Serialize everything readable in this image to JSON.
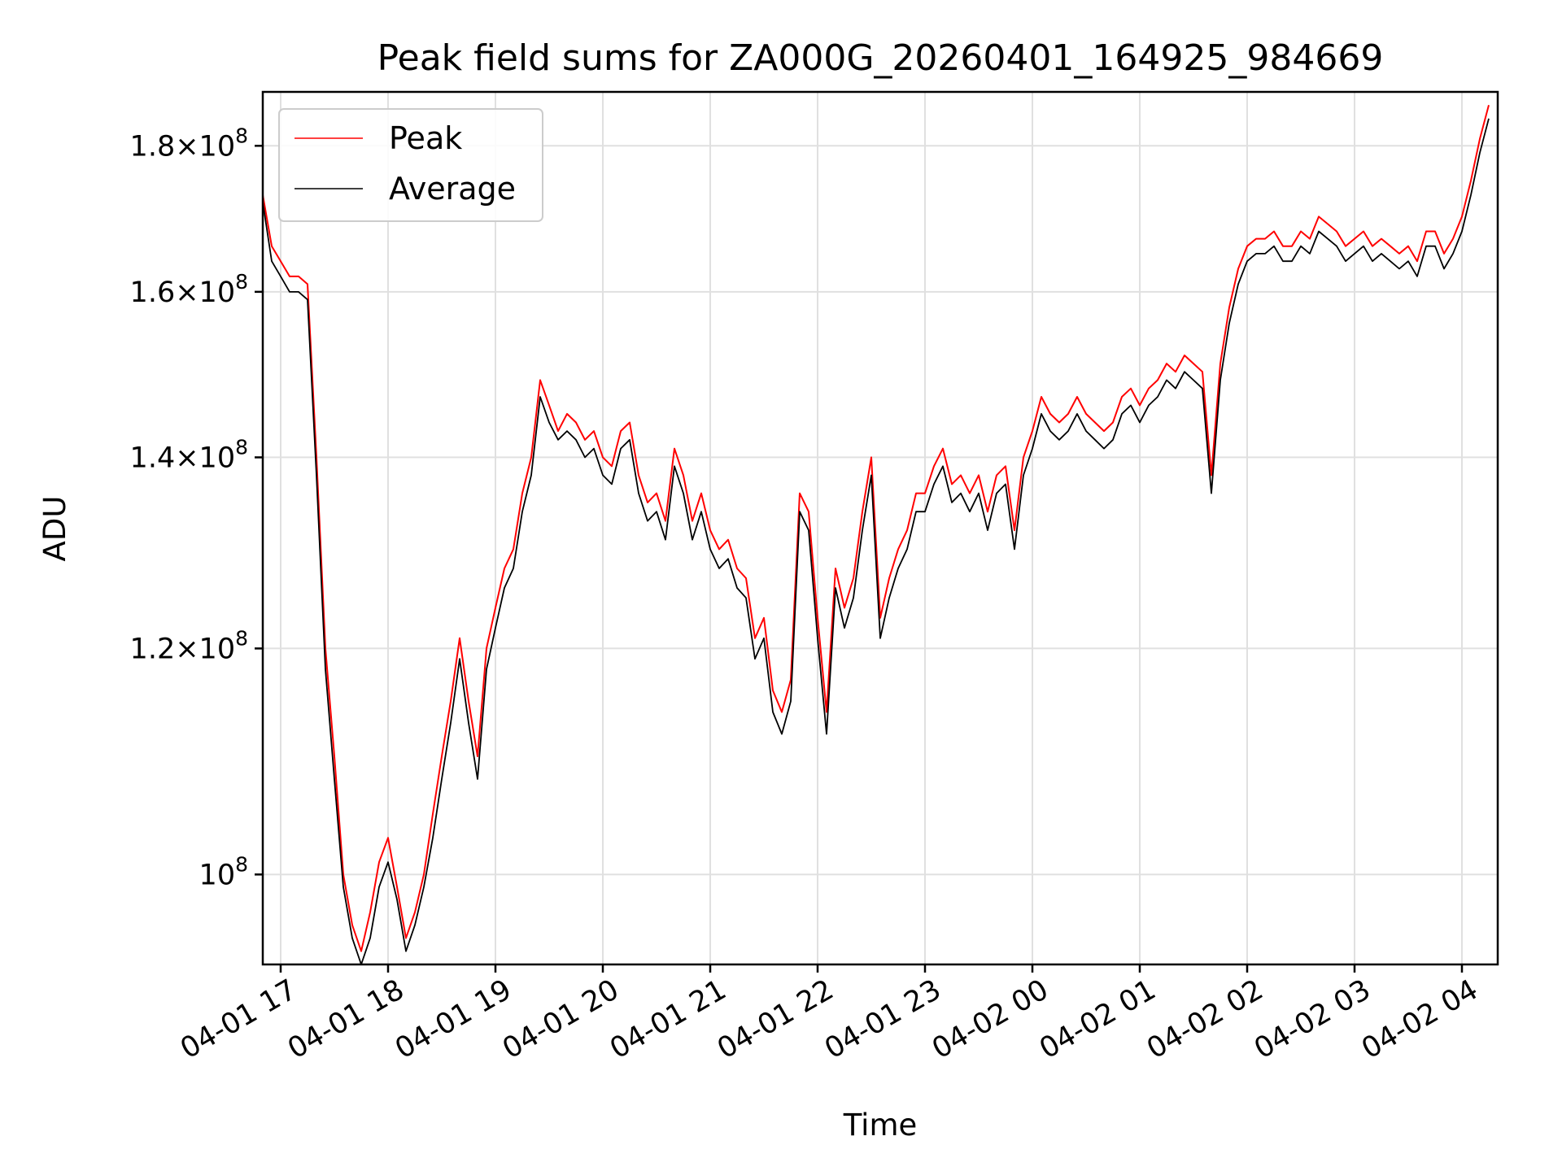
{
  "chart_data": {
    "type": "line",
    "title": "Peak field sums for ZA000G_20260401_164925_984669",
    "xlabel": "Time",
    "ylabel": "ADU",
    "yscale": "log",
    "xlim": [
      "04-01 16:50",
      "04-02 04:20"
    ],
    "ylim": [
      93000000,
      188000000
    ],
    "grid": true,
    "legend": {
      "position": "top-left"
    },
    "x_ticks": [
      "04-01 17",
      "04-01 18",
      "04-01 19",
      "04-01 20",
      "04-01 21",
      "04-01 22",
      "04-01 23",
      "04-02 00",
      "04-02 01",
      "04-02 02",
      "04-02 03",
      "04-02 04"
    ],
    "y_ticks": [
      {
        "value": 100000000,
        "label": "10^8"
      },
      {
        "value": 120000000,
        "label": "1.2×10^8"
      },
      {
        "value": 140000000,
        "label": "1.4×10^8"
      },
      {
        "value": 160000000,
        "label": "1.6×10^8"
      },
      {
        "value": 180000000,
        "label": "1.8×10^8"
      }
    ],
    "x": [
      "04-01 16:50",
      "04-01 16:55",
      "04-01 17:00",
      "04-01 17:05",
      "04-01 17:10",
      "04-01 17:15",
      "04-01 17:20",
      "04-01 17:25",
      "04-01 17:30",
      "04-01 17:35",
      "04-01 17:40",
      "04-01 17:45",
      "04-01 17:50",
      "04-01 17:55",
      "04-01 18:00",
      "04-01 18:05",
      "04-01 18:10",
      "04-01 18:15",
      "04-01 18:20",
      "04-01 18:25",
      "04-01 18:30",
      "04-01 18:35",
      "04-01 18:40",
      "04-01 18:45",
      "04-01 18:50",
      "04-01 18:55",
      "04-01 19:00",
      "04-01 19:05",
      "04-01 19:10",
      "04-01 19:15",
      "04-01 19:20",
      "04-01 19:25",
      "04-01 19:30",
      "04-01 19:35",
      "04-01 19:40",
      "04-01 19:45",
      "04-01 19:50",
      "04-01 19:55",
      "04-01 20:00",
      "04-01 20:05",
      "04-01 20:10",
      "04-01 20:15",
      "04-01 20:20",
      "04-01 20:25",
      "04-01 20:30",
      "04-01 20:35",
      "04-01 20:40",
      "04-01 20:45",
      "04-01 20:50",
      "04-01 20:55",
      "04-01 21:00",
      "04-01 21:05",
      "04-01 21:10",
      "04-01 21:15",
      "04-01 21:20",
      "04-01 21:25",
      "04-01 21:30",
      "04-01 21:35",
      "04-01 21:40",
      "04-01 21:45",
      "04-01 21:50",
      "04-01 21:55",
      "04-01 22:00",
      "04-01 22:05",
      "04-01 22:10",
      "04-01 22:15",
      "04-01 22:20",
      "04-01 22:25",
      "04-01 22:30",
      "04-01 22:35",
      "04-01 22:40",
      "04-01 22:45",
      "04-01 22:50",
      "04-01 22:55",
      "04-01 23:00",
      "04-01 23:05",
      "04-01 23:10",
      "04-01 23:15",
      "04-01 23:20",
      "04-01 23:25",
      "04-01 23:30",
      "04-01 23:35",
      "04-01 23:40",
      "04-01 23:45",
      "04-01 23:50",
      "04-01 23:55",
      "04-02 00:00",
      "04-02 00:05",
      "04-02 00:10",
      "04-02 00:15",
      "04-02 00:20",
      "04-02 00:25",
      "04-02 00:30",
      "04-02 00:35",
      "04-02 00:40",
      "04-02 00:45",
      "04-02 00:50",
      "04-02 00:55",
      "04-02 01:00",
      "04-02 01:05",
      "04-02 01:10",
      "04-02 01:15",
      "04-02 01:20",
      "04-02 01:25",
      "04-02 01:30",
      "04-02 01:35",
      "04-02 01:40",
      "04-02 01:45",
      "04-02 01:50",
      "04-02 01:55",
      "04-02 02:00",
      "04-02 02:05",
      "04-02 02:10",
      "04-02 02:15",
      "04-02 02:20",
      "04-02 02:25",
      "04-02 02:30",
      "04-02 02:35",
      "04-02 02:40",
      "04-02 02:45",
      "04-02 02:50",
      "04-02 02:55",
      "04-02 03:00",
      "04-02 03:05",
      "04-02 03:10",
      "04-02 03:15",
      "04-02 03:20",
      "04-02 03:25",
      "04-02 03:30",
      "04-02 03:35",
      "04-02 03:40",
      "04-02 03:45",
      "04-02 03:50",
      "04-02 03:55",
      "04-02 04:00",
      "04-02 04:05",
      "04-02 04:10",
      "04-02 04:15"
    ],
    "series": [
      {
        "name": "Peak",
        "color": "#ff0000",
        "values": [
          173,
          166,
          164,
          162,
          162,
          161,
          140,
          120,
          110,
          100,
          96,
          94,
          97,
          101,
          103,
          99,
          95,
          97,
          100,
          105,
          110,
          115,
          121,
          115,
          110,
          120,
          124,
          128,
          130,
          136,
          140,
          149,
          146,
          143,
          145,
          144,
          142,
          143,
          140,
          139,
          143,
          144,
          138,
          135,
          136,
          133,
          141,
          138,
          133,
          136,
          132,
          130,
          131,
          128,
          127,
          121,
          123,
          116,
          114,
          117,
          136,
          134,
          123,
          114,
          128,
          124,
          127,
          134,
          140,
          123,
          127,
          130,
          132,
          136,
          136,
          139,
          141,
          137,
          138,
          136,
          138,
          134,
          138,
          139,
          132,
          140,
          143,
          147,
          145,
          144,
          145,
          147,
          145,
          144,
          143,
          144,
          147,
          148,
          146,
          148,
          149,
          151,
          150,
          152,
          151,
          150,
          138,
          151,
          158,
          163,
          166,
          167,
          167,
          168,
          166,
          166,
          168,
          167,
          170,
          169,
          168,
          166,
          167,
          168,
          166,
          167,
          166,
          165,
          166,
          164,
          168,
          168,
          165,
          167,
          170,
          175,
          181,
          186
        ]
      },
      {
        "name": "Average",
        "color": "#000000",
        "values": [
          172,
          164,
          162,
          160,
          160,
          159,
          138,
          118,
          108,
          99,
          95,
          93,
          95,
          99,
          101,
          98,
          94,
          96,
          99,
          103,
          108,
          113,
          119,
          113,
          108,
          118,
          122,
          126,
          128,
          134,
          138,
          147,
          144,
          142,
          143,
          142,
          140,
          141,
          138,
          137,
          141,
          142,
          136,
          133,
          134,
          131,
          139,
          136,
          131,
          134,
          130,
          128,
          129,
          126,
          125,
          119,
          121,
          114,
          112,
          115,
          134,
          132,
          121,
          112,
          126,
          122,
          125,
          132,
          138,
          121,
          125,
          128,
          130,
          134,
          134,
          137,
          139,
          135,
          136,
          134,
          136,
          132,
          136,
          137,
          130,
          138,
          141,
          145,
          143,
          142,
          143,
          145,
          143,
          142,
          141,
          142,
          145,
          146,
          144,
          146,
          147,
          149,
          148,
          150,
          149,
          148,
          136,
          149,
          156,
          161,
          164,
          165,
          165,
          166,
          164,
          164,
          166,
          165,
          168,
          167,
          166,
          164,
          165,
          166,
          164,
          165,
          164,
          163,
          164,
          162,
          166,
          166,
          163,
          165,
          168,
          173,
          179,
          184
        ]
      }
    ],
    "values_unit": "x 10^6 ADU"
  }
}
